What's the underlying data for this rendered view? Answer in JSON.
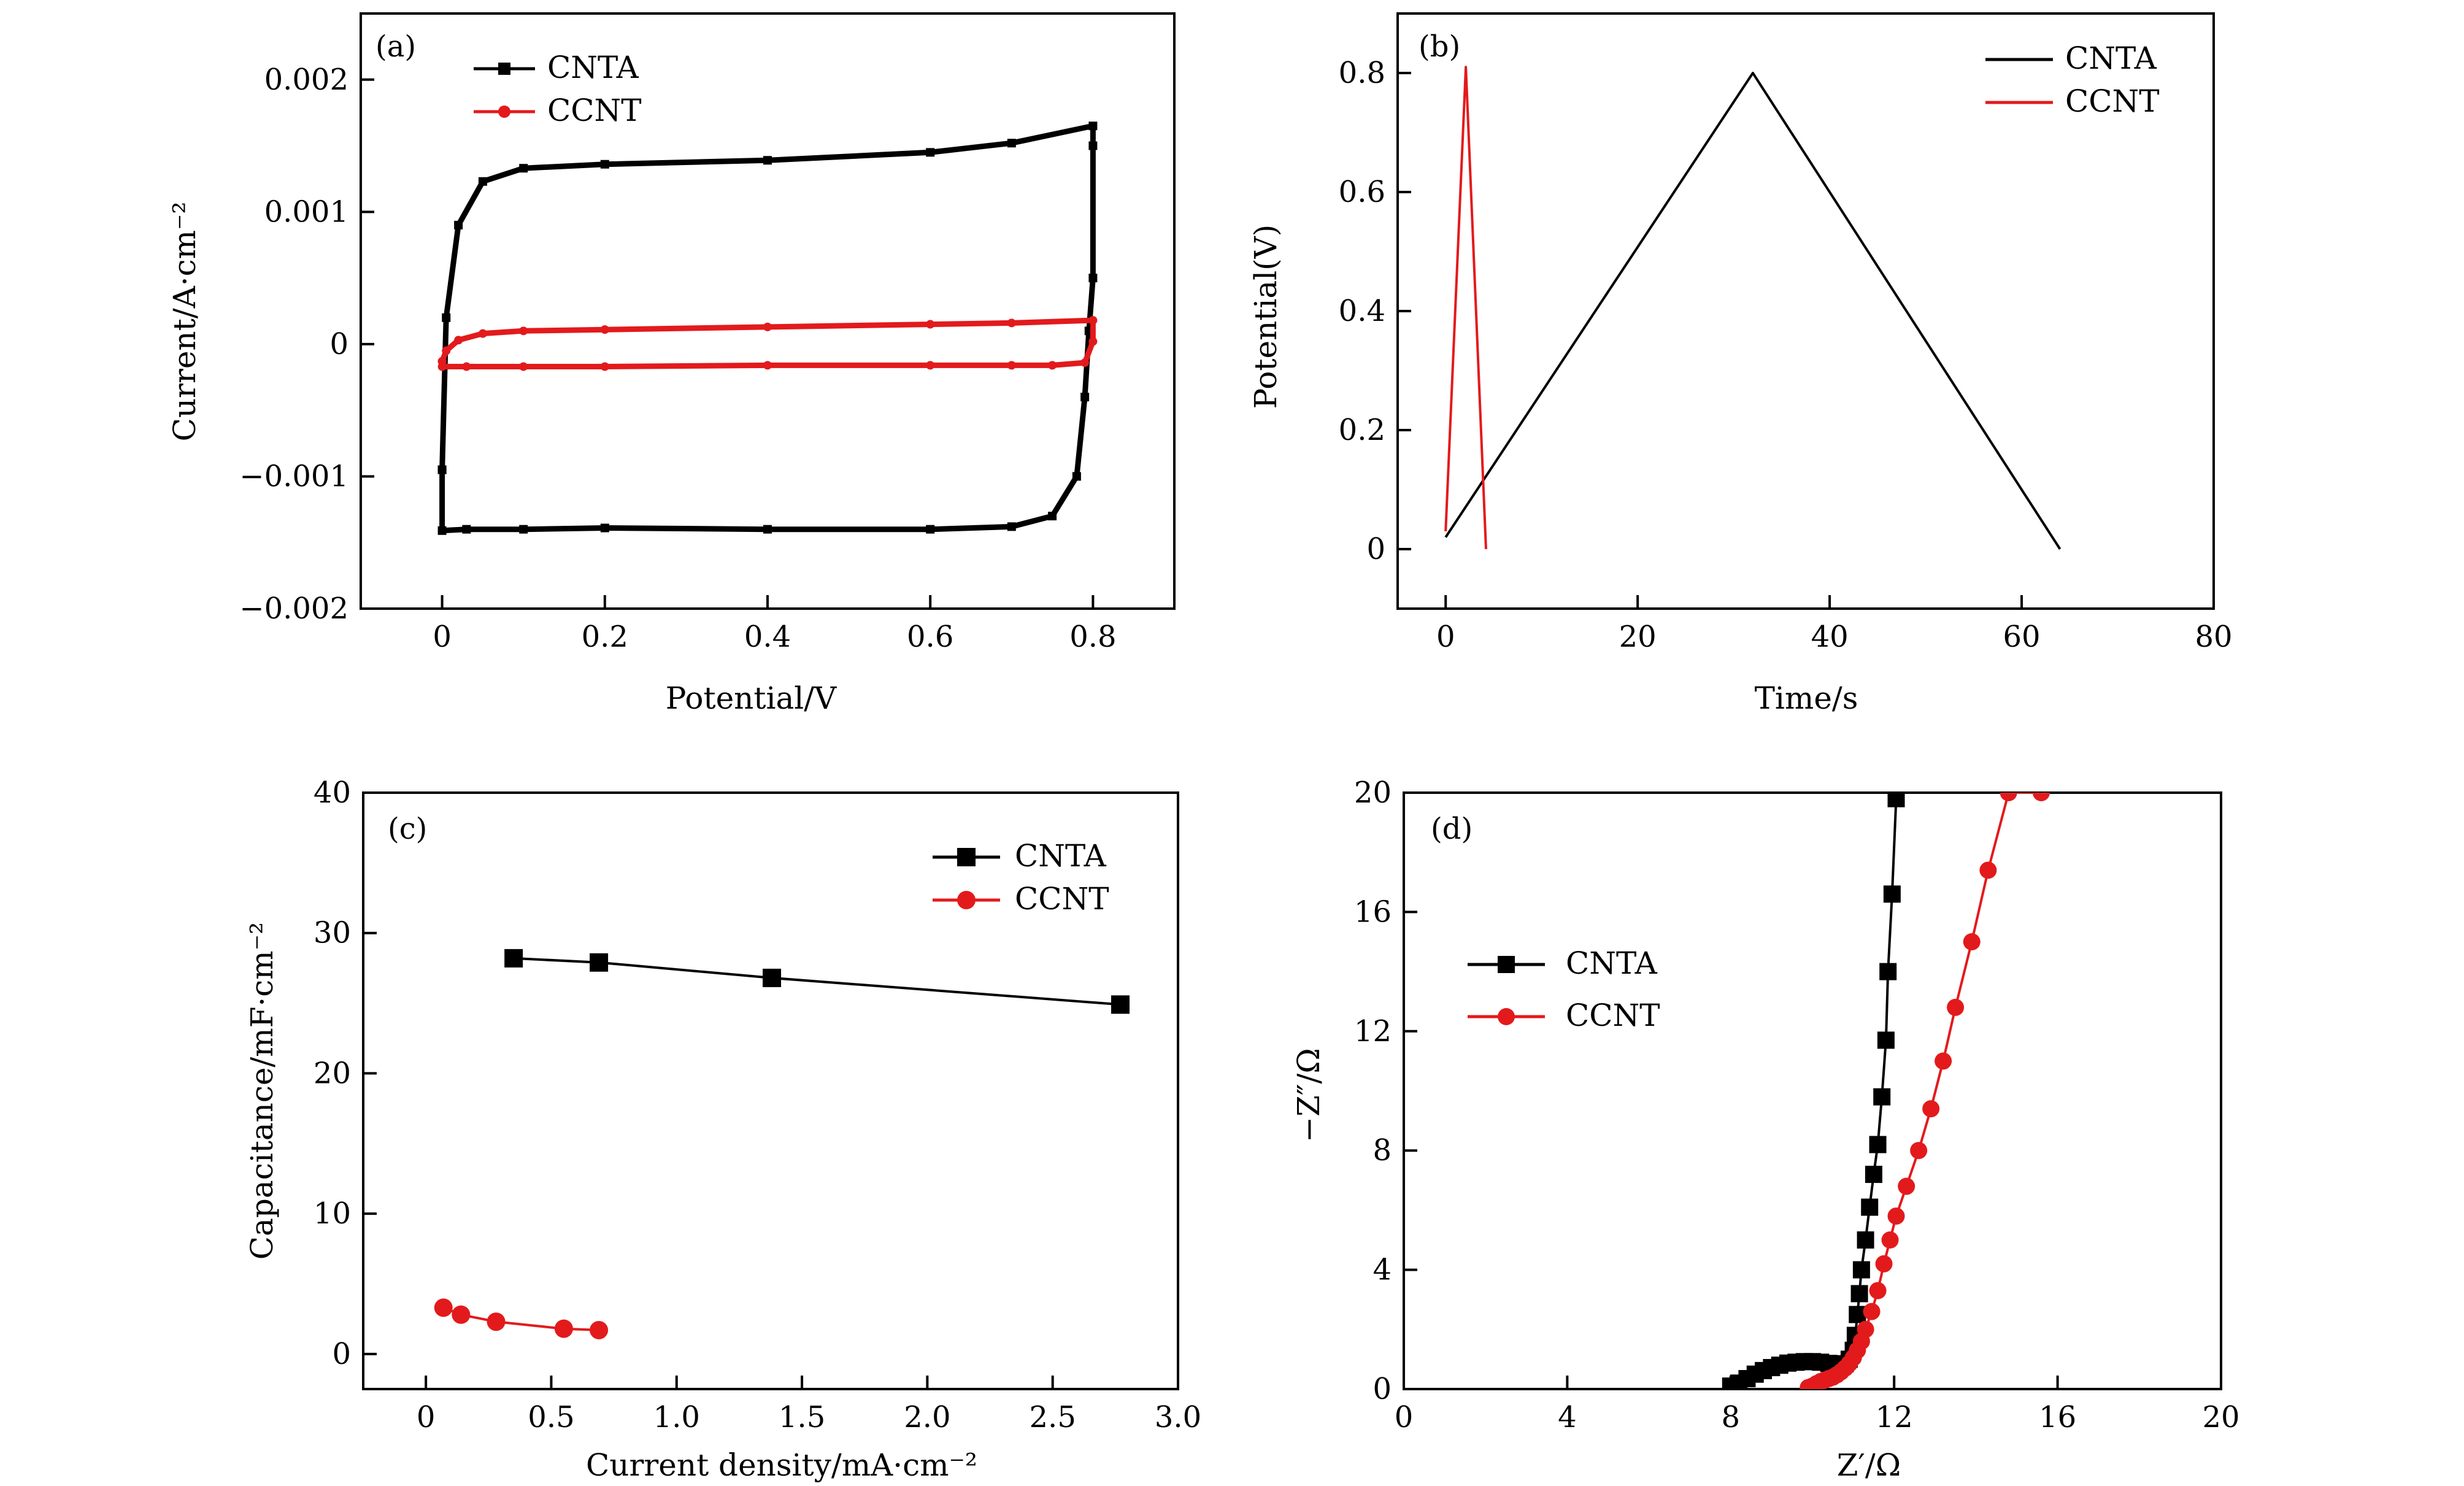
{
  "chart_data": [
    {
      "panel": "(a)",
      "type": "line",
      "xlabel": "Potential/V",
      "ylabel": "Current/A·cm⁻²",
      "xlim": [
        -0.1,
        0.9
      ],
      "ylim": [
        -0.002,
        0.0025
      ],
      "xticks": [
        0,
        0.2,
        0.4,
        0.6,
        0.8
      ],
      "xtick_labels": [
        "0",
        "0.2",
        "0.4",
        "0.6",
        "0.8"
      ],
      "yticks": [
        -0.002,
        -0.001,
        0,
        0.001,
        0.002
      ],
      "ytick_labels": [
        "−0.002",
        "−0.001",
        "0",
        "0.001",
        "0.002"
      ],
      "legend": "top-left",
      "series": [
        {
          "name": "CNTA",
          "color": "#000000",
          "marker": "square",
          "x": [
            0,
            0.005,
            0.02,
            0.05,
            0.1,
            0.2,
            0.4,
            0.6,
            0.7,
            0.8,
            0.8,
            0.8,
            0.795,
            0.79,
            0.78,
            0.75,
            0.7,
            0.6,
            0.4,
            0.2,
            0.1,
            0.03,
            0,
            0
          ],
          "values": [
            -0.00095,
            0.0002,
            0.0009,
            0.00123,
            0.00133,
            0.00136,
            0.00139,
            0.00145,
            0.00152,
            0.00165,
            0.0015,
            0.0005,
            0.0001,
            -0.0004,
            -0.001,
            -0.0013,
            -0.00138,
            -0.0014,
            -0.0014,
            -0.00139,
            -0.0014,
            -0.0014,
            -0.00141,
            -0.00095
          ]
        },
        {
          "name": "CCNT",
          "color": "#e31a1c",
          "marker": "circle",
          "x": [
            0,
            0.005,
            0.02,
            0.05,
            0.1,
            0.2,
            0.4,
            0.6,
            0.7,
            0.8,
            0.8,
            0.79,
            0.75,
            0.7,
            0.6,
            0.4,
            0.2,
            0.1,
            0.03,
            0,
            0
          ],
          "values": [
            -0.00013,
            -5e-05,
            3e-05,
            8e-05,
            0.0001,
            0.00011,
            0.00013,
            0.00015,
            0.00016,
            0.00018,
            2e-05,
            -0.00014,
            -0.00016,
            -0.00016,
            -0.00016,
            -0.00016,
            -0.00017,
            -0.00017,
            -0.00017,
            -0.00017,
            -0.00013
          ]
        }
      ]
    },
    {
      "panel": "(b)",
      "type": "line",
      "xlabel": "Time/s",
      "ylabel": "Potential(V)",
      "xlim": [
        -5,
        80
      ],
      "ylim": [
        -0.1,
        0.9
      ],
      "xticks": [
        0,
        20,
        40,
        60,
        80
      ],
      "xtick_labels": [
        "0",
        "20",
        "40",
        "60",
        "80"
      ],
      "yticks": [
        0,
        0.2,
        0.4,
        0.6,
        0.8
      ],
      "ytick_labels": [
        "0",
        "0.2",
        "0.4",
        "0.6",
        "0.8"
      ],
      "legend": "top-right",
      "series": [
        {
          "name": "CNTA",
          "color": "#000000",
          "x": [
            0,
            32,
            64
          ],
          "values": [
            0.02,
            0.8,
            0
          ]
        },
        {
          "name": "CCNT",
          "color": "#e31a1c",
          "x": [
            0,
            2.1,
            4.2
          ],
          "values": [
            0.03,
            0.81,
            0
          ]
        }
      ]
    },
    {
      "panel": "(c)",
      "type": "line",
      "xlabel": "Current density/mA·cm⁻²",
      "ylabel": "Capacitance/mF·cm⁻²",
      "xlim": [
        -0.25,
        3.0
      ],
      "ylim": [
        -2.5,
        40
      ],
      "xticks": [
        0,
        0.5,
        1.0,
        1.5,
        2.0,
        2.5,
        3.0
      ],
      "xtick_labels": [
        "0",
        "0.5",
        "1.0",
        "1.5",
        "2.0",
        "2.5",
        "3.0"
      ],
      "yticks": [
        0,
        10,
        20,
        30,
        40
      ],
      "ytick_labels": [
        "0",
        "10",
        "20",
        "30",
        "40"
      ],
      "legend": "top-right",
      "series": [
        {
          "name": "CNTA",
          "color": "#000000",
          "marker": "square",
          "x": [
            0.35,
            0.69,
            1.38,
            2.77
          ],
          "values": [
            28.2,
            27.9,
            26.8,
            24.9
          ]
        },
        {
          "name": "CCNT",
          "color": "#e31a1c",
          "marker": "circle",
          "x": [
            0.07,
            0.14,
            0.28,
            0.55,
            0.69
          ],
          "values": [
            3.3,
            2.8,
            2.3,
            1.8,
            1.7
          ]
        }
      ]
    },
    {
      "panel": "(d)",
      "type": "scatter",
      "xlabel": "Z′/Ω",
      "ylabel": "−Z″/Ω",
      "xlim": [
        0,
        20
      ],
      "ylim": [
        0,
        20
      ],
      "xticks": [
        0,
        4,
        8,
        12,
        16,
        20
      ],
      "xtick_labels": [
        "0",
        "4",
        "8",
        "12",
        "16",
        "20"
      ],
      "yticks": [
        0,
        4,
        8,
        12,
        16,
        20
      ],
      "ytick_labels": [
        "0",
        "4",
        "8",
        "12",
        "16",
        "20"
      ],
      "legend": "center-left",
      "series": [
        {
          "name": "CNTA",
          "color": "#000000",
          "marker": "square",
          "x": [
            8.0,
            8.2,
            8.4,
            8.6,
            8.8,
            9.0,
            9.2,
            9.4,
            9.6,
            9.8,
            10.0,
            10.2,
            10.4,
            10.6,
            10.8,
            10.9,
            11.0,
            11.05,
            11.1,
            11.15,
            11.2,
            11.3,
            11.4,
            11.5,
            11.6,
            11.7,
            11.8,
            11.85,
            11.95,
            12.05
          ],
          "values": [
            0.1,
            0.2,
            0.35,
            0.5,
            0.62,
            0.72,
            0.8,
            0.87,
            0.9,
            0.92,
            0.92,
            0.9,
            0.86,
            0.82,
            0.85,
            1.0,
            1.3,
            1.8,
            2.5,
            3.2,
            4.0,
            5.0,
            6.1,
            7.2,
            8.2,
            9.8,
            11.7,
            14.0,
            16.6,
            19.8
          ]
        },
        {
          "name": "CCNT",
          "color": "#e31a1c",
          "marker": "circle",
          "x": [
            9.9,
            10.0,
            10.1,
            10.2,
            10.3,
            10.4,
            10.5,
            10.6,
            10.7,
            10.8,
            10.9,
            11.0,
            11.1,
            11.2,
            11.3,
            11.45,
            11.6,
            11.75,
            11.9,
            12.05,
            12.3,
            12.6,
            12.9,
            13.2,
            13.5,
            13.9,
            14.3,
            14.8,
            15.6
          ],
          "values": [
            0.05,
            0.1,
            0.18,
            0.25,
            0.3,
            0.35,
            0.4,
            0.48,
            0.58,
            0.7,
            0.85,
            1.05,
            1.3,
            1.6,
            2.0,
            2.6,
            3.3,
            4.2,
            5.0,
            5.8,
            6.8,
            8.0,
            9.4,
            11.0,
            12.8,
            15.0,
            17.4,
            20.0,
            20.0
          ]
        }
      ]
    }
  ]
}
